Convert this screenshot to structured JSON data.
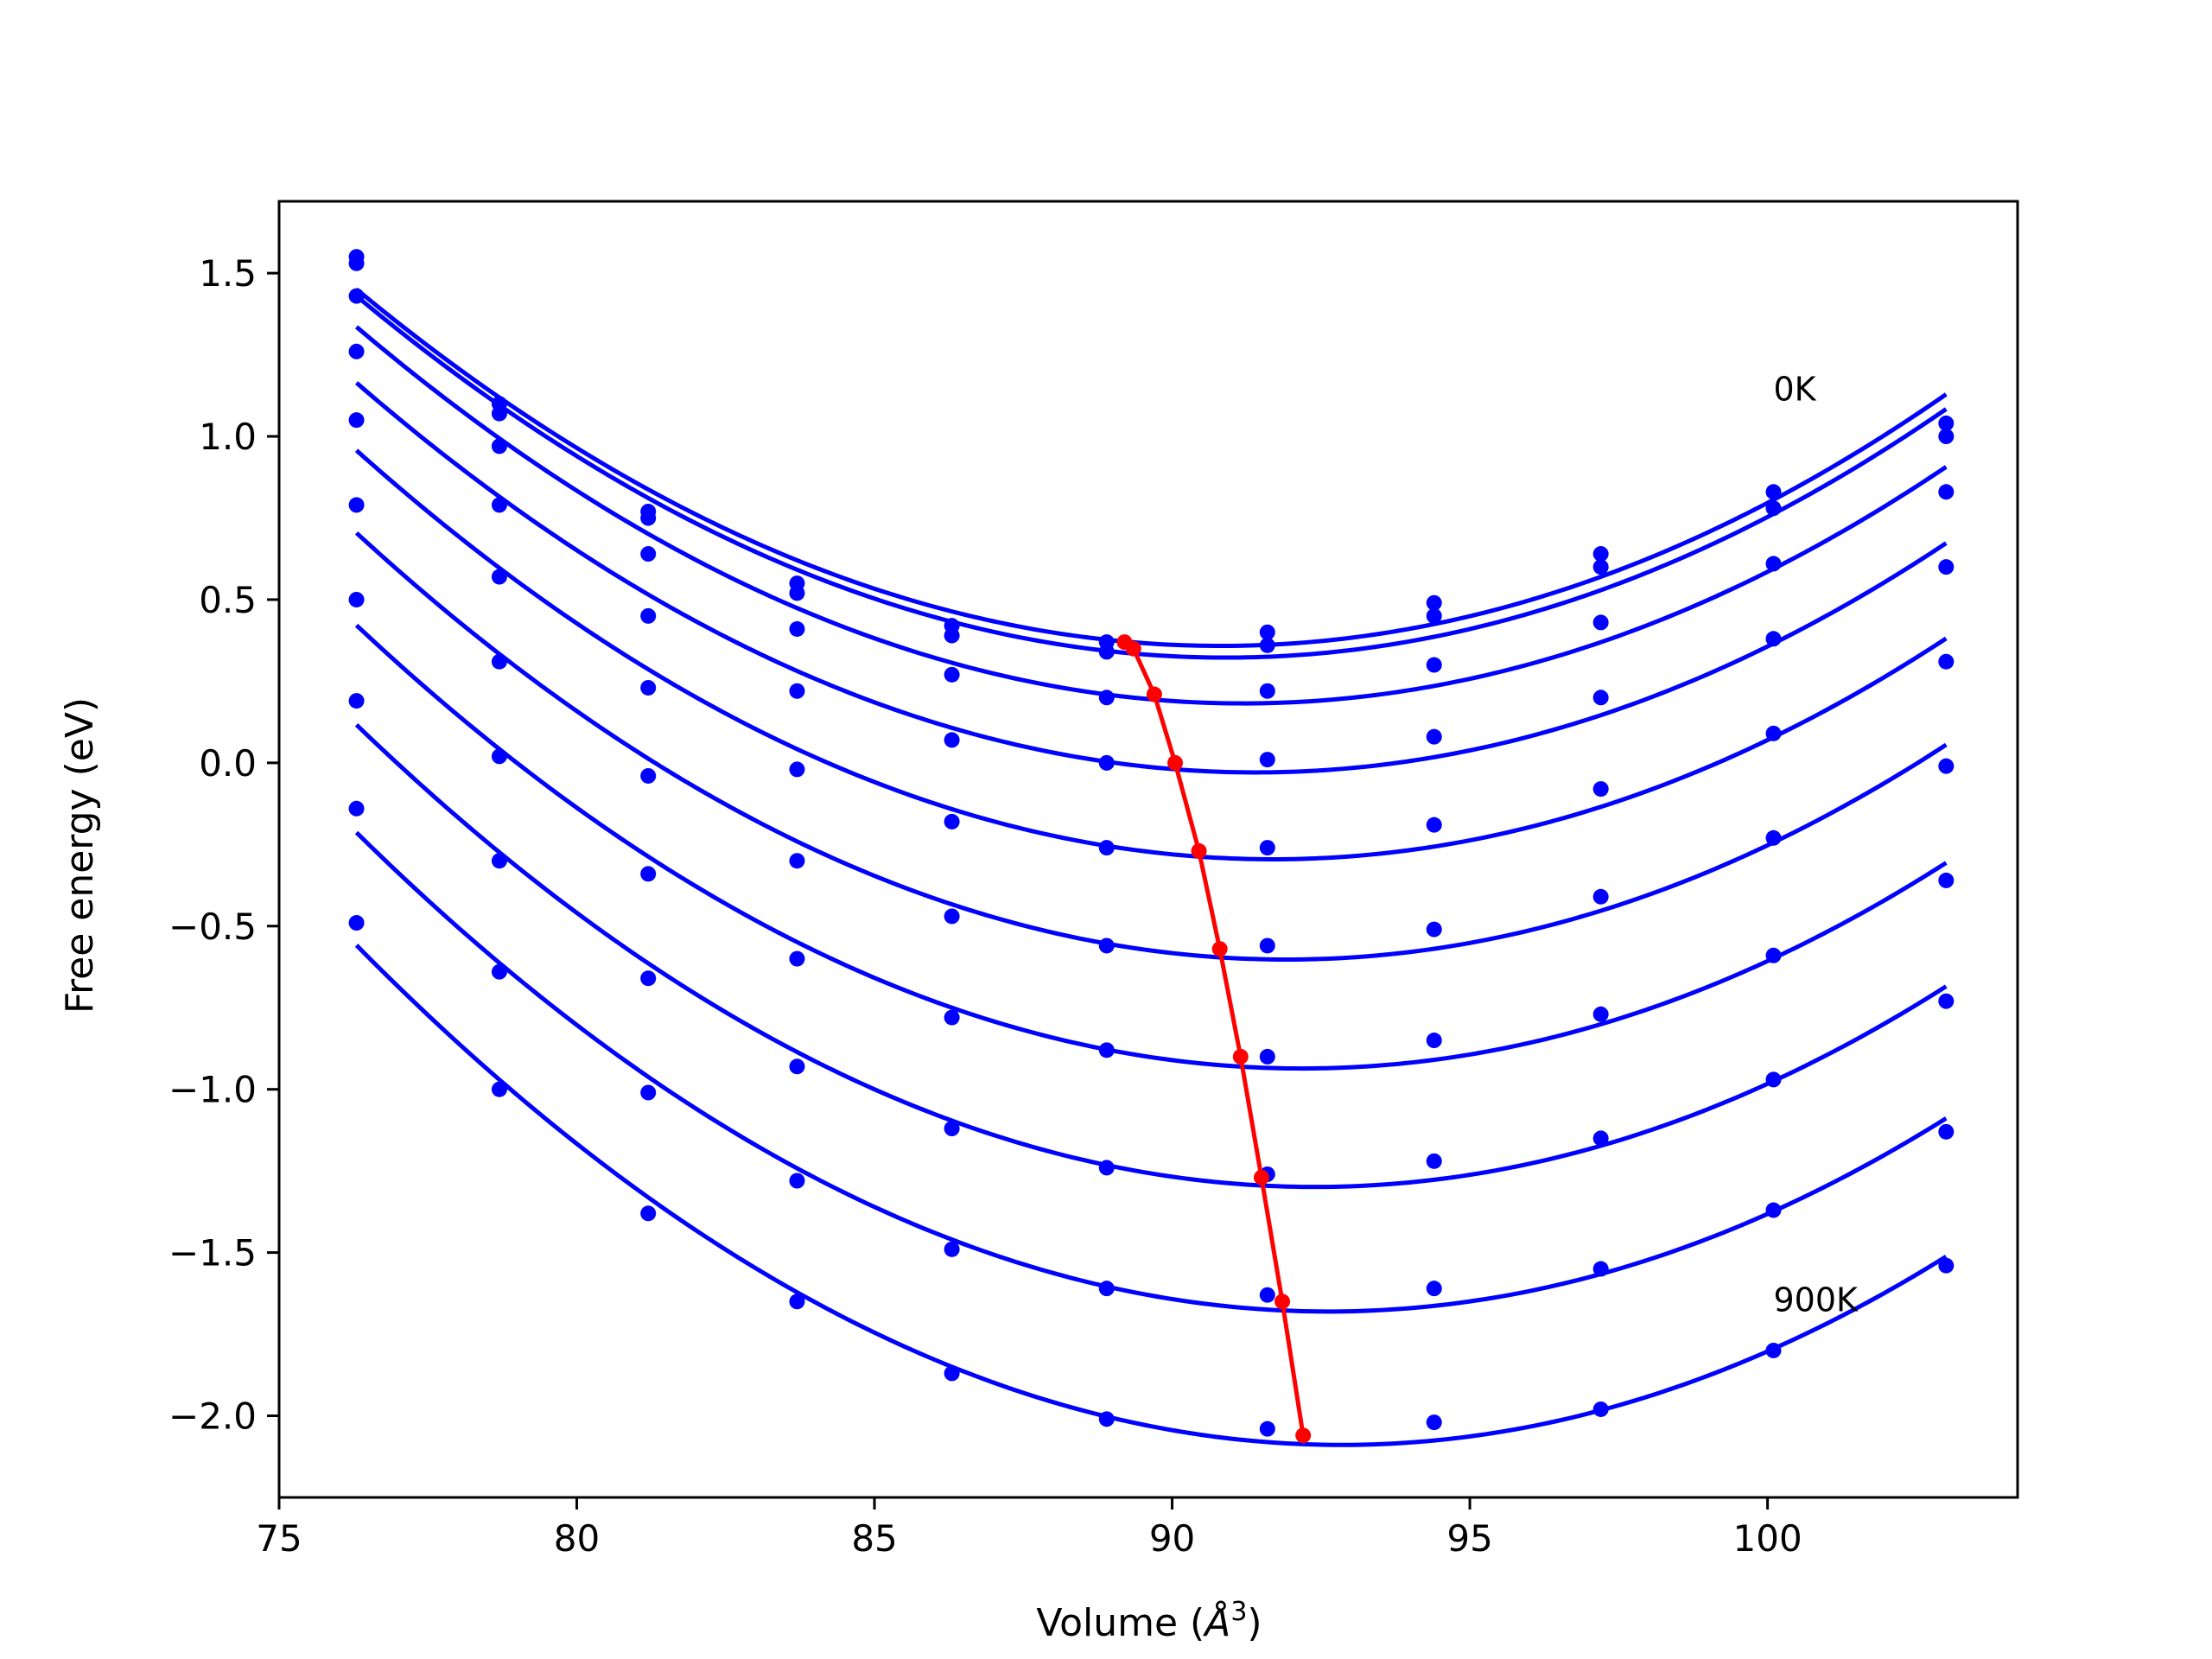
{
  "chart_data": {
    "type": "line",
    "xlabel_prefix": "Volume (",
    "xlabel_symbol": "Å",
    "xlabel_sup": "3",
    "xlabel_suffix": ")",
    "ylabel": "Free energy (eV)",
    "xlim": [
      75,
      104.2
    ],
    "ylim": [
      -2.25,
      1.72
    ],
    "x_ticks": [
      75,
      80,
      85,
      90,
      95,
      100
    ],
    "x_tick_labels": [
      "75",
      "80",
      "85",
      "90",
      "95",
      "100"
    ],
    "y_ticks": [
      1.5,
      1.0,
      0.5,
      0.0,
      -0.5,
      -1.0,
      -1.5,
      -2.0
    ],
    "y_tick_labels": [
      "1.5",
      "1.0",
      "0.5",
      "0.0",
      "−0.5",
      "−1.0",
      "−1.5",
      "−2.0"
    ],
    "grid": false,
    "colors": {
      "curves": "#0000ff",
      "minimum": "#ff0000",
      "frame": "#000000"
    },
    "annotations": [
      {
        "text": "0K",
        "x": 100.1,
        "y": 1.11
      },
      {
        "text": "900K",
        "x": 100.1,
        "y": -1.68
      }
    ],
    "volumes": [
      76.3,
      78.7,
      81.2,
      83.7,
      86.3,
      88.9,
      91.6,
      94.4,
      97.2,
      100.1,
      103.0
    ],
    "series": [
      {
        "values": [
          1.55,
          1.1,
          0.77,
          0.55,
          0.42,
          0.37,
          0.4,
          0.49,
          0.64,
          0.83,
          1.04
        ]
      },
      {
        "values": [
          1.53,
          1.07,
          0.75,
          0.52,
          0.39,
          0.34,
          0.36,
          0.45,
          0.6,
          0.78,
          1.0
        ]
      },
      {
        "values": [
          1.43,
          0.97,
          0.64,
          0.41,
          0.27,
          0.2,
          0.22,
          0.3,
          0.43,
          0.61,
          0.83
        ]
      },
      {
        "values": [
          1.26,
          0.79,
          0.45,
          0.22,
          0.07,
          0.0,
          0.01,
          0.08,
          0.2,
          0.38,
          0.6
        ]
      },
      {
        "values": [
          1.05,
          0.57,
          0.23,
          -0.02,
          -0.18,
          -0.26,
          -0.26,
          -0.19,
          -0.08,
          0.09,
          0.31
        ]
      },
      {
        "values": [
          0.79,
          0.31,
          -0.04,
          -0.3,
          -0.47,
          -0.56,
          -0.56,
          -0.51,
          -0.41,
          -0.23,
          -0.01
        ]
      },
      {
        "values": [
          0.5,
          0.02,
          -0.34,
          -0.6,
          -0.78,
          -0.88,
          -0.9,
          -0.85,
          -0.77,
          -0.59,
          -0.36
        ]
      },
      {
        "values": [
          0.19,
          -0.3,
          -0.66,
          -0.93,
          -1.12,
          -1.24,
          -1.26,
          -1.22,
          -1.15,
          -0.97,
          -0.73
        ]
      },
      {
        "values": [
          -0.14,
          -0.64,
          -1.01,
          -1.28,
          -1.49,
          -1.61,
          -1.63,
          -1.61,
          -1.55,
          -1.37,
          -1.13
        ]
      },
      {
        "values": [
          -0.49,
          -1.0,
          -1.38,
          -1.65,
          -1.87,
          -2.01,
          -2.04,
          -2.02,
          -1.98,
          -1.8,
          -1.54
        ]
      }
    ],
    "minimum_line": {
      "x": [
        89.2,
        89.35,
        89.7,
        90.05,
        90.45,
        90.8,
        91.15,
        91.5,
        91.85,
        92.2
      ],
      "y": [
        0.37,
        0.35,
        0.21,
        0.0,
        -0.27,
        -0.57,
        -0.9,
        -1.27,
        -1.65,
        -2.06
      ]
    }
  }
}
